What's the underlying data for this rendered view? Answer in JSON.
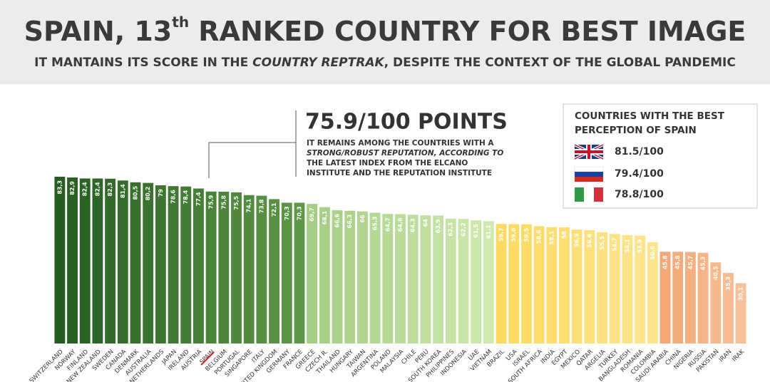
{
  "chart_data": {
    "type": "bar",
    "title_parts": [
      "SPAIN, 13",
      "th",
      " RANKED COUNTRY FOR BEST IMAGE"
    ],
    "subtitle_parts": [
      "IT MANTAINS ITS SCORE IN THE ",
      "COUNTRY REPTRAK",
      ", DESPITE THE CONTEXT OF THE GLOBAL PANDEMIC"
    ],
    "annotation": {
      "headline": "75.9/100 POINTS",
      "lines": [
        "IT REMAINS AMONG THE COUNTRIES WITH A",
        "STRONG/ROBUST REPUTATION, ACCORDING TO",
        "THE LATEST INDEX FROM THE ELCANO",
        "INSTITUTE AND THE REPUTATION INSTITUTE"
      ]
    },
    "legend_box": {
      "title_lines": [
        "COUNTRIES WITH THE BEST",
        "PERCEPTION OF SPAIN"
      ],
      "scores": [
        "81.5/100",
        "79.4/100",
        "78.8/100"
      ]
    },
    "categories": [
      "SWITZERLAND",
      "NORWAY",
      "FINLAND",
      "NEW ZEALAND",
      "SWEDEN",
      "CANADA",
      "DENMARK",
      "AUSTRALIA",
      "NETHERLANDS",
      "JAPAN",
      "IRELAND",
      "AUSTRIA",
      "SPAIN",
      "BELGIUM",
      "PORTUGAL",
      "SINGAPORE",
      "ITALY",
      "UNITED KINGDOM",
      "GERMANY",
      "FRANCE",
      "GREECE",
      "CZECH R.",
      "THAILAND",
      "HUNGARY",
      "TAIWAN",
      "ARGENTINA",
      "POLAND",
      "MALAYSIA",
      "CHILE",
      "PERU",
      "SOUTH KOREA",
      "PHILIPPINES",
      "INDONESIA",
      "UAE",
      "VIETNAM",
      "BRAZIL",
      "USA",
      "ISRAEL",
      "SOUTH AFRICA",
      "INDIA",
      "EGYPT",
      "MEXICO",
      "QATAR",
      "ARGELIA",
      "TURKEY",
      "BANGLADESH",
      "ROMANIA",
      "COLOMBIA",
      "SAUDI ARABIA",
      "CHINA",
      "NIGERIA",
      "RUSSIA",
      "PAKISTAN",
      "IRAN",
      "IRAK"
    ],
    "values": [
      83.3,
      82.9,
      82.4,
      82.4,
      82.3,
      81.4,
      80.5,
      80.2,
      79,
      78.6,
      78.4,
      77.4,
      75.9,
      75.8,
      75.5,
      74.1,
      73.8,
      72.1,
      70.3,
      70.3,
      69.7,
      68.1,
      66.6,
      66.3,
      66,
      65.3,
      64.7,
      64.6,
      64.3,
      64,
      63.9,
      62.3,
      62.2,
      61.5,
      61.1,
      59.7,
      59.6,
      59.5,
      58.6,
      58.1,
      58,
      56.9,
      56.6,
      55.5,
      54.7,
      54.1,
      53.9,
      50.6,
      45.8,
      45.8,
      45.7,
      45.3,
      40.5,
      35.3,
      30.1
    ],
    "value_labels": [
      "83,3",
      "82,9",
      "82,4",
      "82,4",
      "82,3",
      "81,4",
      "80,5",
      "80,2",
      "79",
      "78,6",
      "78,4",
      "77,4",
      "75,9",
      "75,8",
      "75,5",
      "74,1",
      "73,8",
      "72,1",
      "70,3",
      "70,3",
      "69,7",
      "68,1",
      "66,6",
      "66,3",
      "66",
      "65,3",
      "64,7",
      "64,6",
      "64,3",
      "64",
      "63,9",
      "62,3",
      "62,2",
      "61,5",
      "61,1",
      "59,7",
      "59,6",
      "59,5",
      "58,6",
      "58,1",
      "58",
      "56,9",
      "56,6",
      "55,5",
      "54,7",
      "54,1",
      "53,9",
      "50,6",
      "45,8",
      "45,8",
      "45,7",
      "45,3",
      "40,5",
      "35,3",
      "30,1"
    ],
    "colors": [
      "#245d1f",
      "#285f22",
      "#2b6325",
      "#2e6627",
      "#316a29",
      "#346d2b",
      "#37702d",
      "#3a732f",
      "#3d7631",
      "#407933",
      "#437c35",
      "#467f37",
      "#498239",
      "#4c853b",
      "#4f883d",
      "#528b3f",
      "#558e41",
      "#589143",
      "#5b9445",
      "#5e9747",
      "#a5cd84",
      "#a8cf87",
      "#abd18a",
      "#aed38d",
      "#b1d590",
      "#b4d793",
      "#b7d996",
      "#badb99",
      "#bddd9c",
      "#c0df9f",
      "#c3e1a2",
      "#c6e3a5",
      "#c9e5a8",
      "#cce7ab",
      "#cfe9ae",
      "#fdd95f",
      "#fdda63",
      "#fddb67",
      "#fddc6b",
      "#fddd6f",
      "#fdde73",
      "#fddf77",
      "#fde07b",
      "#fde17f",
      "#fde283",
      "#fde387",
      "#fde48b",
      "#fde58f",
      "#f4a875",
      "#f5ac7b",
      "#f5b081",
      "#f6b487",
      "#f6b88d",
      "#f7bc93",
      "#f7c099"
    ],
    "ylim": [
      0,
      100
    ]
  }
}
